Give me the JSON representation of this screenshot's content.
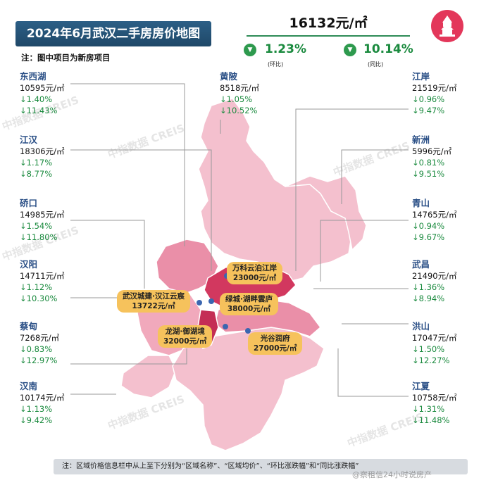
{
  "header": {
    "title": "2024年6月武汉二手房房价地图",
    "note": "注：图中项目为新房项目",
    "avg_price": "16132元/㎡",
    "mom_change": "1.23%",
    "mom_label": "(环比)",
    "yoy_change": "10.14%",
    "yoy_label": "(同比)"
  },
  "districts_left": [
    {
      "name": "东西湖",
      "price": "10595元/㎡",
      "mom": "↓1.40%",
      "yoy": "↓11.43%"
    },
    {
      "name": "江汉",
      "price": "18306元/㎡",
      "mom": "↓1.17%",
      "yoy": "↓8.77%"
    },
    {
      "name": "硚口",
      "price": "14985元/㎡",
      "mom": "↓1.54%",
      "yoy": "↓11.80%"
    },
    {
      "name": "汉阳",
      "price": "14711元/㎡",
      "mom": "↓1.12%",
      "yoy": "↓10.30%"
    },
    {
      "name": "蔡甸",
      "price": "7268元/㎡",
      "mom": "↓0.83%",
      "yoy": "↓12.97%"
    },
    {
      "name": "汉南",
      "price": "10174元/㎡",
      "mom": "↓1.13%",
      "yoy": "↓9.42%"
    }
  ],
  "district_center": {
    "name": "黄陂",
    "price": "8518元/㎡",
    "mom": "↓1.05%",
    "yoy": "↓10.52%"
  },
  "districts_right": [
    {
      "name": "江岸",
      "price": "21519元/㎡",
      "mom": "↓0.96%",
      "yoy": "↓9.47%"
    },
    {
      "name": "新洲",
      "price": "5996元/㎡",
      "mom": "↓0.81%",
      "yoy": "↓9.51%"
    },
    {
      "name": "青山",
      "price": "14765元/㎡",
      "mom": "↓0.94%",
      "yoy": "↓9.67%"
    },
    {
      "name": "武昌",
      "price": "21490元/㎡",
      "mom": "↓1.36%",
      "yoy": "↓8.94%"
    },
    {
      "name": "洪山",
      "price": "17047元/㎡",
      "mom": "↓1.50%",
      "yoy": "↓12.27%"
    },
    {
      "name": "江夏",
      "price": "10758元/㎡",
      "mom": "↓1.31%",
      "yoy": "↓11.48%"
    }
  ],
  "projects": [
    {
      "name": "万科云泊江岸",
      "price": "23000元/㎡"
    },
    {
      "name": "武汉城建·汉江云宸",
      "price": "13722元/㎡"
    },
    {
      "name": "绿城·湖畔雲庐",
      "price": "38000元/㎡"
    },
    {
      "name": "龙湖·御湖境",
      "price": "32000元/㎡"
    },
    {
      "name": "光谷润府",
      "price": "27000元/㎡"
    }
  ],
  "footer_note": "注：区域价格信息栏中从上至下分别为“区域名称”、“区域均价”、“环比涨跌幅”和“同比涨跌幅”",
  "watermark": "中指数据 CREIS",
  "weibo_credit": "@察租信24小时说房产",
  "colors": {
    "title_bg": "#2c5f86",
    "down_green": "#1a8a3e",
    "project_yellow": "#f6c25c",
    "map_light": "#f4c0ce",
    "map_mid": "#ea8fa8",
    "map_dark": "#d2385f"
  }
}
